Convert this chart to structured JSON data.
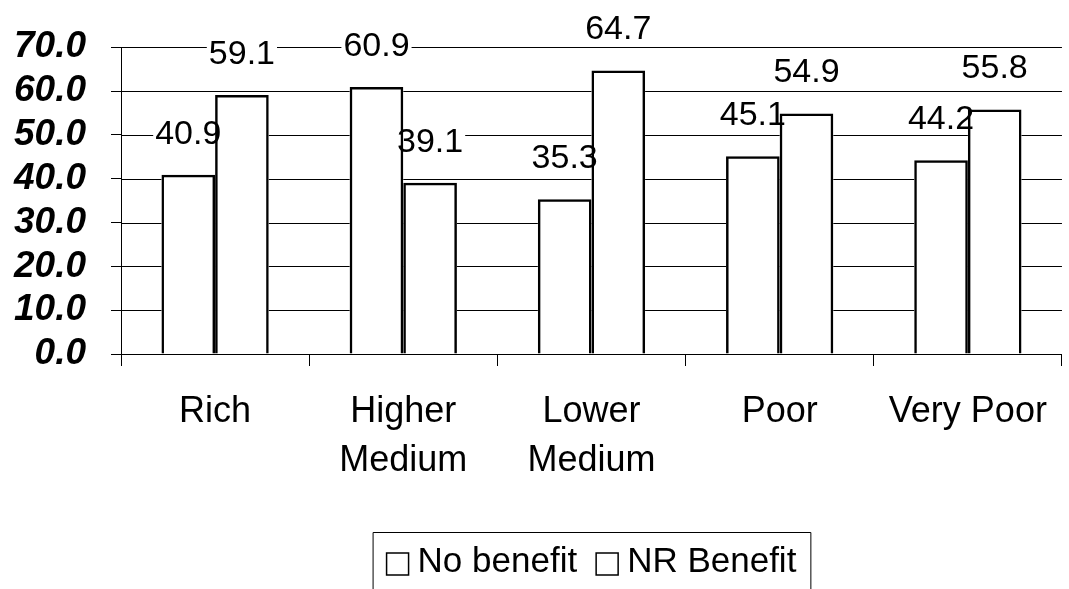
{
  "chart_data": {
    "type": "bar",
    "categories": [
      "Rich",
      "Higher Medium",
      "Lower Medium",
      "Poor",
      "Very Poor"
    ],
    "series": [
      {
        "name": "No benefit",
        "color": "#000000",
        "values": [
          40.9,
          60.9,
          35.3,
          45.1,
          44.2
        ]
      },
      {
        "name": "NR Benefit",
        "color": "#000000",
        "values": [
          59.1,
          39.1,
          64.7,
          54.9,
          55.8
        ]
      }
    ],
    "ylim": [
      0,
      70
    ],
    "yticks": [
      {
        "value": 0,
        "label": "0.0"
      },
      {
        "value": 10,
        "label": "10.0"
      },
      {
        "value": 20,
        "label": "20.0"
      },
      {
        "value": 30,
        "label": "30.0"
      },
      {
        "value": 40,
        "label": "40.0"
      },
      {
        "value": 50,
        "label": "50.0"
      },
      {
        "value": 60,
        "label": "60.0"
      },
      {
        "value": 70,
        "label": "70.0"
      }
    ],
    "grid": "y",
    "legend": "bottom",
    "data_labels": true
  }
}
